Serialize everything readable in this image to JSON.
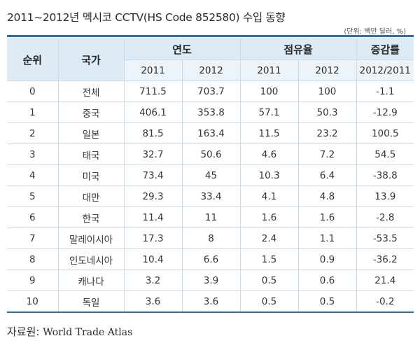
{
  "title": "2011~2012년 멕시코 CCTV(HS Code 852580) 수입 동향",
  "unit": "(단위: 백만 달러, %)",
  "headers": {
    "rank": "순위",
    "country": "국가",
    "year_group": "연도",
    "share_group": "점유율",
    "change_group": "증감률",
    "y2011": "2011",
    "y2012": "2012",
    "s2011": "2011",
    "s2012": "2012",
    "change_sub": "2012/2011"
  },
  "rows": [
    {
      "rank": "0",
      "country": "전체",
      "v2011": "711.5",
      "v2012": "703.7",
      "s2011": "100",
      "s2012": "100",
      "change": "-1.1"
    },
    {
      "rank": "1",
      "country": "중국",
      "v2011": "406.1",
      "v2012": "353.8",
      "s2011": "57.1",
      "s2012": "50.3",
      "change": "-12.9"
    },
    {
      "rank": "2",
      "country": "일본",
      "v2011": "81.5",
      "v2012": "163.4",
      "s2011": "11.5",
      "s2012": "23.2",
      "change": "100.5"
    },
    {
      "rank": "3",
      "country": "태국",
      "v2011": "32.7",
      "v2012": "50.6",
      "s2011": "4.6",
      "s2012": "7.2",
      "change": "54.5"
    },
    {
      "rank": "4",
      "country": "미국",
      "v2011": "73.4",
      "v2012": "45",
      "s2011": "10.3",
      "s2012": "6.4",
      "change": "-38.8"
    },
    {
      "rank": "5",
      "country": "대만",
      "v2011": "29.3",
      "v2012": "33.4",
      "s2011": "4.1",
      "s2012": "4.8",
      "change": "13.9"
    },
    {
      "rank": "6",
      "country": "한국",
      "v2011": "11.4",
      "v2012": "11",
      "s2011": "1.6",
      "s2012": "1.6",
      "change": "-2.8"
    },
    {
      "rank": "7",
      "country": "말레이시아",
      "v2011": "17.3",
      "v2012": "8",
      "s2011": "2.4",
      "s2012": "1.1",
      "change": "-53.5"
    },
    {
      "rank": "8",
      "country": "인도네시아",
      "v2011": "10.4",
      "v2012": "6.6",
      "s2011": "1.5",
      "s2012": "0.9",
      "change": "-36.2"
    },
    {
      "rank": "9",
      "country": "캐나다",
      "v2011": "3.2",
      "v2012": "3.9",
      "s2011": "0.5",
      "s2012": "0.6",
      "change": "21.4"
    },
    {
      "rank": "10",
      "country": "독일",
      "v2011": "3.6",
      "v2012": "3.6",
      "s2011": "0.5",
      "s2012": "0.5",
      "change": "-0.2"
    }
  ],
  "source_label": "자료원:",
  "source_name": "World Trade Atlas",
  "colors": {
    "header_bg": "#dcebf5",
    "subheader_bg": "#ecf4fa",
    "rule": "#2d6fa3",
    "border": "#c9dbe8"
  }
}
